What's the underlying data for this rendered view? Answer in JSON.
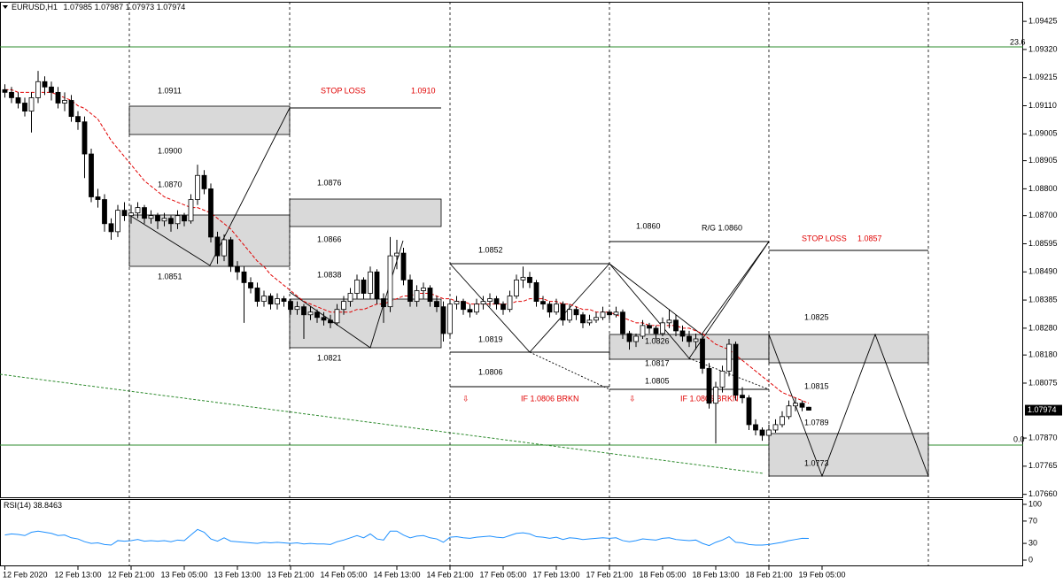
{
  "chart_data": {
    "type": "candlestick",
    "symbol": "EURUSD,H1",
    "categories": [
      "12 Feb 2020",
      null,
      null,
      null,
      null,
      null,
      null,
      null,
      null,
      null,
      null,
      "12 Feb 13:00",
      null,
      null,
      null,
      null,
      null,
      null,
      null,
      "12 Feb 21:00",
      null,
      null,
      null,
      null,
      null,
      null,
      null,
      "13 Feb 05:00",
      null,
      null,
      null,
      null,
      null,
      null,
      null,
      "13 Feb 13:00",
      null,
      null,
      null,
      null,
      null,
      null,
      null,
      "13 Feb 21:00",
      null,
      null,
      null,
      null,
      null,
      null,
      null,
      "14 Feb 05:00",
      null,
      null,
      null,
      null,
      null,
      null,
      null,
      "14 Feb 13:00",
      null,
      null,
      null,
      null,
      null,
      null,
      null,
      "14 Feb 21:00",
      null,
      null,
      null,
      null,
      null,
      null,
      null,
      "17 Feb 05:00",
      null,
      null,
      null,
      null,
      null,
      null,
      null,
      "17 Feb 13:00",
      null,
      null,
      null,
      null,
      null,
      null,
      null,
      "17 Feb 21:00",
      null,
      null,
      null,
      null,
      null,
      null,
      null,
      "18 Feb 05:00",
      null,
      null,
      null,
      null,
      null,
      null,
      null,
      "18 Feb 13:00",
      null,
      null,
      null,
      null,
      null,
      null,
      null,
      "18 Feb 21:00",
      null,
      null,
      null,
      null,
      null,
      null,
      null,
      "19 Feb 05:00"
    ],
    "ohlc": [
      [
        1.0917,
        1.0919,
        1.0914,
        1.0916
      ],
      [
        1.0916,
        1.0918,
        1.0912,
        1.0914
      ],
      [
        1.0914,
        1.0916,
        1.091,
        1.0912
      ],
      [
        1.0912,
        1.0914,
        1.0907,
        1.0909
      ],
      [
        1.0909,
        1.0916,
        1.0901,
        1.0914
      ],
      [
        1.0914,
        1.0924,
        1.0912,
        1.092
      ],
      [
        1.092,
        1.0922,
        1.0915,
        1.0918
      ],
      [
        1.0918,
        1.092,
        1.0913,
        1.0916
      ],
      [
        1.0916,
        1.0918,
        1.091,
        1.0912
      ],
      [
        1.0912,
        1.0916,
        1.0909,
        1.0913
      ],
      [
        1.0913,
        1.0915,
        1.0905,
        1.0907
      ],
      [
        1.0907,
        1.0909,
        1.0902,
        1.0905
      ],
      [
        1.0905,
        1.0907,
        1.0884,
        1.0893
      ],
      [
        1.0893,
        1.0895,
        1.0875,
        1.0877
      ],
      [
        1.0877,
        1.088,
        1.0873,
        1.0876
      ],
      [
        1.0876,
        1.0878,
        1.0864,
        1.0867
      ],
      [
        1.0867,
        1.0869,
        1.0861,
        1.0864
      ],
      [
        1.0864,
        1.0874,
        1.0862,
        1.0872
      ],
      [
        1.0872,
        1.0875,
        1.0868,
        1.087
      ],
      [
        1.087,
        1.0874,
        1.0867,
        1.0871
      ],
      [
        1.0871,
        1.0875,
        1.0869,
        1.0873
      ],
      [
        1.0873,
        1.0874,
        1.0867,
        1.0869
      ],
      [
        1.0869,
        1.0872,
        1.0867,
        1.087
      ],
      [
        1.087,
        1.0871,
        1.0865,
        1.0868
      ],
      [
        1.0868,
        1.0871,
        1.0866,
        1.0869
      ],
      [
        1.0869,
        1.087,
        1.0864,
        1.0867
      ],
      [
        1.0867,
        1.0872,
        1.0865,
        1.087
      ],
      [
        1.087,
        1.0871,
        1.0866,
        1.0868
      ],
      [
        1.0868,
        1.0878,
        1.0867,
        1.0876
      ],
      [
        1.0876,
        1.0889,
        1.0874,
        1.0885
      ],
      [
        1.0885,
        1.0887,
        1.0878,
        1.088
      ],
      [
        1.088,
        1.0882,
        1.086,
        1.0862
      ],
      [
        1.0862,
        1.0864,
        1.0852,
        1.0855
      ],
      [
        1.0855,
        1.0863,
        1.0853,
        1.0861
      ],
      [
        1.0861,
        1.0862,
        1.0849,
        1.0851
      ],
      [
        1.0851,
        1.0853,
        1.0846,
        1.0849
      ],
      [
        1.0849,
        1.0851,
        1.083,
        1.0845
      ],
      [
        1.0845,
        1.0847,
        1.0841,
        1.0843
      ],
      [
        1.0843,
        1.0845,
        1.0836,
        1.0838
      ],
      [
        1.0838,
        1.0842,
        1.0836,
        1.084
      ],
      [
        1.084,
        1.0841,
        1.0835,
        1.0837
      ],
      [
        1.0837,
        1.0841,
        1.0835,
        1.0839
      ],
      [
        1.0839,
        1.084,
        1.0836,
        1.0838
      ],
      [
        1.0838,
        1.0839,
        1.0833,
        1.0835
      ],
      [
        1.0835,
        1.0838,
        1.0833,
        1.0836
      ],
      [
        1.0836,
        1.0837,
        1.0824,
        1.0833
      ],
      [
        1.0833,
        1.0836,
        1.0831,
        1.0834
      ],
      [
        1.0834,
        1.0835,
        1.083,
        1.0832
      ],
      [
        1.0832,
        1.0834,
        1.0829,
        1.0831
      ],
      [
        1.0831,
        1.0833,
        1.0828,
        1.083
      ],
      [
        1.083,
        1.0837,
        1.0829,
        1.0835
      ],
      [
        1.0835,
        1.084,
        1.0833,
        1.0838
      ],
      [
        1.0838,
        1.0843,
        1.0836,
        1.0841
      ],
      [
        1.0841,
        1.0848,
        1.0839,
        1.0846
      ],
      [
        1.0846,
        1.0847,
        1.0839,
        1.0841
      ],
      [
        1.0841,
        1.0851,
        1.0839,
        1.0849
      ],
      [
        1.0849,
        1.085,
        1.0837,
        1.0839
      ],
      [
        1.0839,
        1.0841,
        1.083,
        1.0836
      ],
      [
        1.0836,
        1.0862,
        1.0834,
        1.0855
      ],
      [
        1.0855,
        1.0861,
        1.085,
        1.0856
      ],
      [
        1.0856,
        1.0858,
        1.0844,
        1.0846
      ],
      [
        1.0846,
        1.0848,
        1.0836,
        1.0838
      ],
      [
        1.0838,
        1.0844,
        1.0836,
        1.0842
      ],
      [
        1.0842,
        1.0845,
        1.0839,
        1.0843
      ],
      [
        1.0843,
        1.0844,
        1.0836,
        1.0838
      ],
      [
        1.0838,
        1.084,
        1.0834,
        1.0836
      ],
      [
        1.0836,
        1.0838,
        1.0823,
        1.0826
      ],
      [
        1.0826,
        1.0839,
        1.0825,
        1.0837
      ],
      [
        1.0837,
        1.084,
        1.0835,
        1.0838
      ],
      [
        1.0838,
        1.0839,
        1.0833,
        1.0835
      ],
      [
        1.0835,
        1.0837,
        1.0832,
        1.0834
      ],
      [
        1.0834,
        1.0839,
        1.0833,
        1.0837
      ],
      [
        1.0837,
        1.084,
        1.0835,
        1.0838
      ],
      [
        1.0838,
        1.0841,
        1.0836,
        1.0839
      ],
      [
        1.0839,
        1.084,
        1.0835,
        1.0837
      ],
      [
        1.0837,
        1.0838,
        1.0833,
        1.0835
      ],
      [
        1.0835,
        1.0842,
        1.0834,
        1.084
      ],
      [
        1.084,
        1.0848,
        1.0839,
        1.0846
      ],
      [
        1.0846,
        1.0851,
        1.0843,
        1.0847
      ],
      [
        1.0847,
        1.0849,
        1.0843,
        1.0845
      ],
      [
        1.0845,
        1.0846,
        1.0836,
        1.0838
      ],
      [
        1.0838,
        1.084,
        1.0835,
        1.0837
      ],
      [
        1.0837,
        1.0838,
        1.0832,
        1.0834
      ],
      [
        1.0834,
        1.0839,
        1.0833,
        1.0837
      ],
      [
        1.0837,
        1.0838,
        1.0829,
        1.0831
      ],
      [
        1.0831,
        1.0837,
        1.083,
        1.0835
      ],
      [
        1.0835,
        1.0836,
        1.0831,
        1.0833
      ],
      [
        1.0833,
        1.0834,
        1.0828,
        1.083
      ],
      [
        1.083,
        1.0833,
        1.0829,
        1.0831
      ],
      [
        1.0831,
        1.0834,
        1.083,
        1.0832
      ],
      [
        1.0832,
        1.0836,
        1.0831,
        1.0834
      ],
      [
        1.0834,
        1.0835,
        1.0831,
        1.0833
      ],
      [
        1.0833,
        1.0836,
        1.0832,
        1.0834
      ],
      [
        1.0834,
        1.0835,
        1.0824,
        1.0826
      ],
      [
        1.0826,
        1.0827,
        1.082,
        1.0823
      ],
      [
        1.0823,
        1.0826,
        1.0821,
        1.0825
      ],
      [
        1.0825,
        1.0831,
        1.0824,
        1.0829
      ],
      [
        1.0829,
        1.083,
        1.0826,
        1.0828
      ],
      [
        1.0828,
        1.0829,
        1.0824,
        1.0826
      ],
      [
        1.0826,
        1.0832,
        1.0825,
        1.083
      ],
      [
        1.083,
        1.0835,
        1.0828,
        1.0831
      ],
      [
        1.0831,
        1.0833,
        1.0825,
        1.0827
      ],
      [
        1.0827,
        1.0829,
        1.0823,
        1.0825
      ],
      [
        1.0825,
        1.0827,
        1.0821,
        1.0823
      ],
      [
        1.0823,
        1.0826,
        1.082,
        1.0824
      ],
      [
        1.0824,
        1.0826,
        1.0811,
        1.0813
      ],
      [
        1.0813,
        1.0815,
        1.0798,
        1.08
      ],
      [
        1.08,
        1.0808,
        1.0785,
        1.0806
      ],
      [
        1.0806,
        1.0814,
        1.0804,
        1.0812
      ],
      [
        1.0812,
        1.0824,
        1.081,
        1.0822
      ],
      [
        1.0822,
        1.0823,
        1.0801,
        1.0803
      ],
      [
        1.0803,
        1.0806,
        1.08,
        1.0802
      ],
      [
        1.0802,
        1.0803,
        1.079,
        1.0792
      ],
      [
        1.0792,
        1.0794,
        1.0788,
        1.079
      ],
      [
        1.079,
        1.0791,
        1.0786,
        1.0788
      ],
      [
        1.0788,
        1.0792,
        1.0786,
        1.079
      ],
      [
        1.079,
        1.0794,
        1.0789,
        1.0792
      ],
      [
        1.0792,
        1.0797,
        1.0791,
        1.0795
      ],
      [
        1.0795,
        1.0801,
        1.0794,
        1.0799
      ],
      [
        1.0799,
        1.0802,
        1.0797,
        1.08
      ],
      [
        1.08,
        1.0801,
        1.0797,
        1.07985
      ],
      [
        1.07985,
        1.07987,
        1.07973,
        1.07974
      ],
      null,
      null
    ],
    "moving_average": {
      "color": "#e00000",
      "values": [
        1.0917,
        1.0917,
        1.0916,
        1.0916,
        1.0916,
        1.0916,
        1.0916,
        1.0916,
        1.0915,
        1.0914,
        1.0913,
        1.0911,
        1.091,
        1.0908,
        1.0906,
        1.0902,
        1.0898,
        1.0895,
        1.0892,
        1.0889,
        1.0886,
        1.0883,
        1.0881,
        1.0879,
        1.0877,
        1.0876,
        1.0875,
        1.0874,
        1.0873,
        1.0873,
        1.0872,
        1.0871,
        1.0869,
        1.0867,
        1.0865,
        1.0862,
        1.0859,
        1.0856,
        1.0853,
        1.0851,
        1.0848,
        1.0846,
        1.0844,
        1.0842,
        1.084,
        1.0838,
        1.0837,
        1.0836,
        1.0835,
        1.0834,
        1.0834,
        1.0834,
        1.0834,
        1.0835,
        1.0835,
        1.0836,
        1.0837,
        1.0837,
        1.0838,
        1.0839,
        1.084,
        1.084,
        1.0841,
        1.0841,
        1.0841,
        1.084,
        1.0839,
        1.0839,
        1.0838,
        1.0838,
        1.0837,
        1.0837,
        1.0837,
        1.0837,
        1.0837,
        1.0837,
        1.0837,
        1.0838,
        1.0838,
        1.0839,
        1.0839,
        1.0839,
        1.0838,
        1.0838,
        1.0837,
        1.0837,
        1.0836,
        1.0835,
        1.0835,
        1.0834,
        1.0834,
        1.0834,
        1.0833,
        1.0832,
        1.0831,
        1.083,
        1.083,
        1.0829,
        1.0829,
        1.0829,
        1.0829,
        1.0829,
        1.0828,
        1.0828,
        1.0827,
        1.0826,
        1.0824,
        1.0822,
        1.0821,
        1.082,
        1.0818,
        1.0816,
        1.0814,
        1.0812,
        1.081,
        1.0808,
        1.0806,
        1.0804,
        1.0803,
        1.0802,
        1.0801,
        1.08,
        null,
        null
      ]
    },
    "ylim": [
      1.07649,
      1.09498
    ],
    "yticks": [
      {
        "value": 1.09425,
        "label": "1.09425"
      },
      {
        "value": 1.0932,
        "label": "1.09320"
      },
      {
        "value": 1.09215,
        "label": "1.09215"
      },
      {
        "value": 1.0911,
        "label": "1.09110"
      },
      {
        "value": 1.09005,
        "label": "1.09005"
      },
      {
        "value": 1.08905,
        "label": "1.08905"
      },
      {
        "value": 1.088,
        "label": "1.08800"
      },
      {
        "value": 1.087,
        "label": "1.08700"
      },
      {
        "value": 1.08595,
        "label": "1.08595"
      },
      {
        "value": 1.0849,
        "label": "1.08490"
      },
      {
        "value": 1.08385,
        "label": "1.08385"
      },
      {
        "value": 1.0828,
        "label": "1.08280"
      },
      {
        "value": 1.0818,
        "label": "1.08180"
      },
      {
        "value": 1.08075,
        "label": "1.08075"
      },
      {
        "value": 1.0787,
        "label": "1.07870"
      },
      {
        "value": 1.07765,
        "label": "1.07765"
      },
      {
        "value": 1.0766,
        "label": "1.07660"
      }
    ],
    "annotations": [
      "1.0911",
      "STOP LOSS",
      "1.0910",
      "1.0900",
      "1.0870",
      "1.0876",
      "1.0866",
      "1.0851",
      "1.0838",
      "1.0821",
      "1.0852",
      "1.0819",
      "1.0806",
      "IF 1.0806 BRKN",
      "1.0860",
      "R/G 1.0860",
      "STOP LOSS",
      "1.0857",
      "1.0826",
      "1.0817",
      "1.0805",
      "IF 1.0805 BRKN",
      "1.0825",
      "1.0815",
      "1.0789",
      "1.0773",
      "23.6",
      "0.0"
    ],
    "rsi": {
      "name": "RSI(14)",
      "color": "#1e90ff",
      "ylim": [
        0,
        100
      ],
      "yticks": [
        100,
        70,
        30,
        0
      ],
      "values": [
        45,
        47,
        46,
        44,
        50,
        52,
        50,
        48,
        44,
        45,
        40,
        38,
        33,
        30,
        31,
        28,
        27,
        35,
        34,
        35,
        37,
        34,
        35,
        34,
        35,
        33,
        36,
        35,
        45,
        55,
        50,
        38,
        34,
        40,
        34,
        33,
        32,
        31,
        30,
        32,
        31,
        32,
        31,
        30,
        31,
        29,
        30,
        29,
        29,
        28,
        33,
        36,
        40,
        44,
        40,
        47,
        38,
        36,
        52,
        52,
        45,
        40,
        43,
        44,
        40,
        38,
        32,
        41,
        42,
        40,
        39,
        41,
        42,
        43,
        41,
        40,
        44,
        48,
        49,
        47,
        42,
        41,
        39,
        41,
        37,
        40,
        39,
        37,
        38,
        39,
        40,
        39,
        40,
        35,
        33,
        35,
        38,
        37,
        36,
        39,
        40,
        37,
        36,
        35,
        36,
        30,
        26,
        32,
        36,
        42,
        32,
        31,
        28,
        27,
        27,
        28,
        30,
        32,
        35,
        37,
        39,
        38.8463,
        null,
        null
      ]
    }
  }
}
